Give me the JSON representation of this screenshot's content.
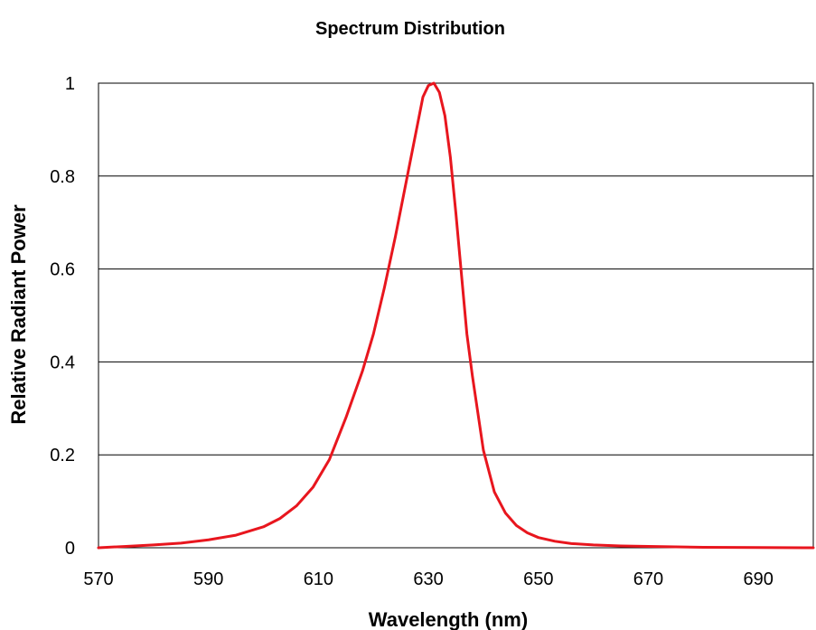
{
  "chart_data": {
    "type": "line",
    "title": "Spectrum Distribution",
    "xlabel": "Wavelength (nm)",
    "ylabel": "Relative Radiant Power",
    "xlim": [
      570,
      700
    ],
    "ylim": [
      0,
      1
    ],
    "x_ticks": [
      "570",
      "590",
      "610",
      "630",
      "650",
      "670",
      "690"
    ],
    "y_ticks": [
      "0",
      "0.2",
      "0.4",
      "0.6",
      "0.8",
      "1"
    ],
    "grid": "horizontal",
    "legend": "none",
    "series": [
      {
        "color": "#e8161e",
        "x": [
          570,
          575,
          580,
          585,
          590,
          595,
          600,
          603,
          606,
          609,
          612,
          615,
          618,
          620,
          622,
          624,
          626,
          628,
          629,
          630,
          631,
          632,
          633,
          634,
          635,
          636,
          637,
          638,
          639,
          640,
          642,
          644,
          646,
          648,
          650,
          653,
          656,
          660,
          665,
          670,
          680,
          690,
          700
        ],
        "y": [
          0.0,
          0.003,
          0.006,
          0.01,
          0.017,
          0.027,
          0.045,
          0.063,
          0.09,
          0.13,
          0.19,
          0.28,
          0.38,
          0.46,
          0.56,
          0.67,
          0.79,
          0.91,
          0.97,
          0.995,
          1.0,
          0.98,
          0.93,
          0.84,
          0.72,
          0.59,
          0.46,
          0.37,
          0.29,
          0.21,
          0.12,
          0.075,
          0.048,
          0.032,
          0.022,
          0.014,
          0.009,
          0.006,
          0.004,
          0.003,
          0.001,
          0.0005,
          0.0
        ]
      }
    ]
  }
}
